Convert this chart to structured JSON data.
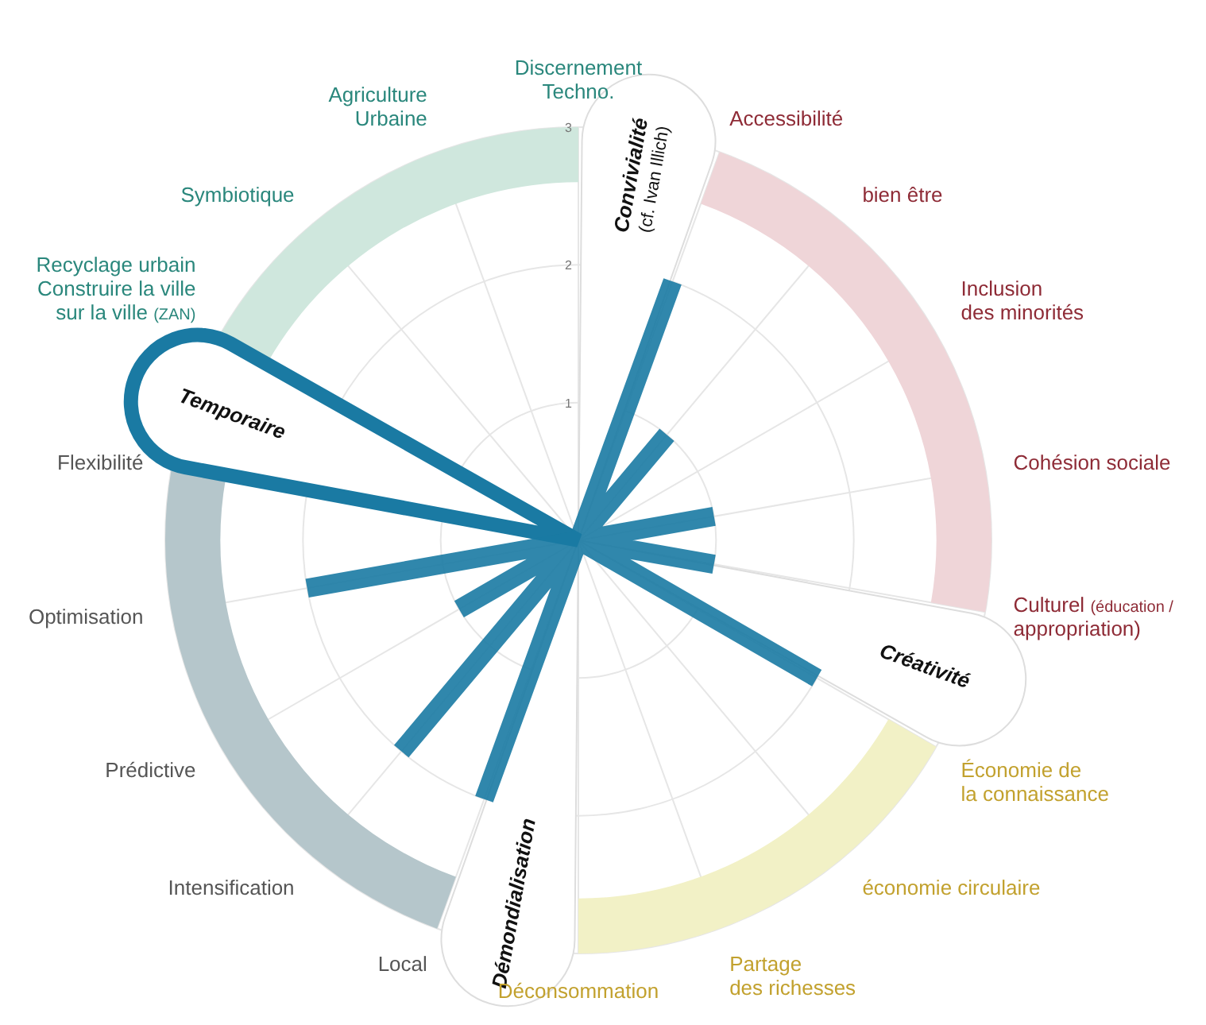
{
  "chart_data": {
    "type": "radar",
    "categories": [
      "Discernement\nTechno.",
      "Accessibilité",
      "bien être",
      "Inclusion\ndes minorités",
      "Cohésion sociale",
      "Culturel (éducation /\nappropriation)",
      "Économie de\nla connaissance",
      "économie circulaire",
      "Partage\ndes richesses",
      "Déconsommation",
      "Local",
      "Intensification",
      "Prédictive",
      "Optimisation",
      "Flexibilité",
      "Recyclage urbain\nConstruire la ville\nsur la ville (ZAN)",
      "Symbiotique",
      "Agriculture\nUrbaine"
    ],
    "series": [
      {
        "color": "#1a7aa3",
        "values": [
          0,
          2,
          1,
          0,
          1,
          1,
          2,
          0,
          0,
          0,
          2,
          2,
          1,
          2,
          0,
          0,
          0,
          0
        ]
      }
    ],
    "ylim": [
      0,
      3
    ],
    "yticks": [
      1,
      2,
      3
    ],
    "grid": true,
    "annotations": [
      "Convivialité\n(cf. Ivan Illich)",
      "Créativité",
      "Démondialisation",
      "Temporaire"
    ]
  }
}
